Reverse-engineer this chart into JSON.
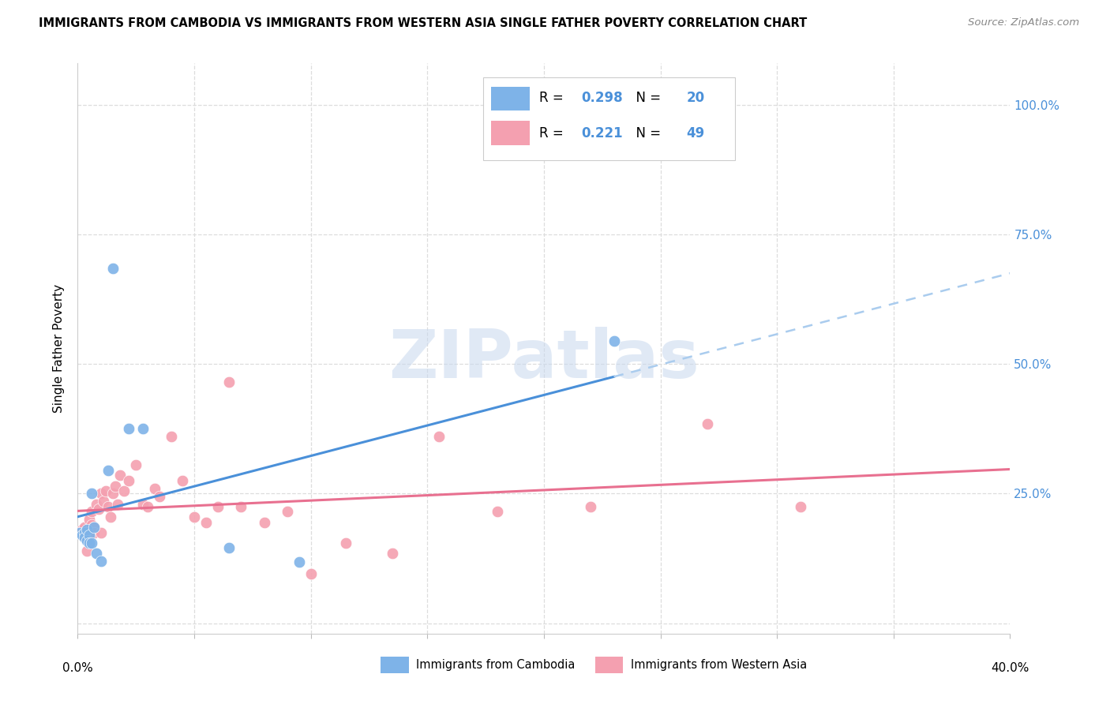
{
  "title": "IMMIGRANTS FROM CAMBODIA VS IMMIGRANTS FROM WESTERN ASIA SINGLE FATHER POVERTY CORRELATION CHART",
  "source": "Source: ZipAtlas.com",
  "ylabel": "Single Father Poverty",
  "y_ticks": [
    0.0,
    0.25,
    0.5,
    0.75,
    1.0
  ],
  "y_tick_labels": [
    "",
    "25.0%",
    "50.0%",
    "75.0%",
    "100.0%"
  ],
  "x_ticks": [
    0.0,
    0.05,
    0.1,
    0.15,
    0.2,
    0.25,
    0.3,
    0.35,
    0.4
  ],
  "xlim": [
    0.0,
    0.4
  ],
  "ylim": [
    -0.02,
    1.08
  ],
  "cambodia_R": 0.298,
  "cambodia_N": 20,
  "western_asia_R": 0.221,
  "western_asia_N": 49,
  "cambodia_color": "#7EB3E8",
  "western_asia_color": "#F4A0B0",
  "trend_cambodia_color": "#4A90D9",
  "trend_western_asia_color": "#E87090",
  "legend_text_color": "#4A90D9",
  "watermark_color": "#C8D8EE",
  "watermark_text": "ZIPatlas",
  "legend_label_color": "#333333",
  "cam_x": [
    0.001,
    0.002,
    0.003,
    0.003,
    0.004,
    0.004,
    0.005,
    0.005,
    0.006,
    0.006,
    0.007,
    0.008,
    0.01,
    0.013,
    0.015,
    0.022,
    0.028,
    0.065,
    0.095,
    0.23
  ],
  "cam_y": [
    0.175,
    0.17,
    0.175,
    0.165,
    0.18,
    0.16,
    0.17,
    0.155,
    0.25,
    0.155,
    0.185,
    0.135,
    0.12,
    0.295,
    0.685,
    0.375,
    0.375,
    0.145,
    0.118,
    0.545
  ],
  "wa_x": [
    0.001,
    0.002,
    0.002,
    0.003,
    0.003,
    0.004,
    0.004,
    0.005,
    0.005,
    0.006,
    0.006,
    0.007,
    0.007,
    0.008,
    0.009,
    0.01,
    0.01,
    0.011,
    0.012,
    0.013,
    0.014,
    0.015,
    0.016,
    0.017,
    0.018,
    0.02,
    0.022,
    0.025,
    0.028,
    0.03,
    0.033,
    0.035,
    0.04,
    0.045,
    0.05,
    0.055,
    0.06,
    0.065,
    0.07,
    0.08,
    0.09,
    0.1,
    0.115,
    0.135,
    0.155,
    0.18,
    0.22,
    0.27,
    0.31
  ],
  "wa_y": [
    0.175,
    0.17,
    0.18,
    0.175,
    0.185,
    0.14,
    0.165,
    0.175,
    0.2,
    0.19,
    0.215,
    0.185,
    0.175,
    0.23,
    0.22,
    0.25,
    0.175,
    0.235,
    0.255,
    0.225,
    0.205,
    0.25,
    0.265,
    0.23,
    0.285,
    0.255,
    0.275,
    0.305,
    0.23,
    0.225,
    0.26,
    0.245,
    0.36,
    0.275,
    0.205,
    0.195,
    0.225,
    0.465,
    0.225,
    0.195,
    0.215,
    0.095,
    0.155,
    0.135,
    0.36,
    0.215,
    0.225,
    0.385,
    0.225
  ]
}
